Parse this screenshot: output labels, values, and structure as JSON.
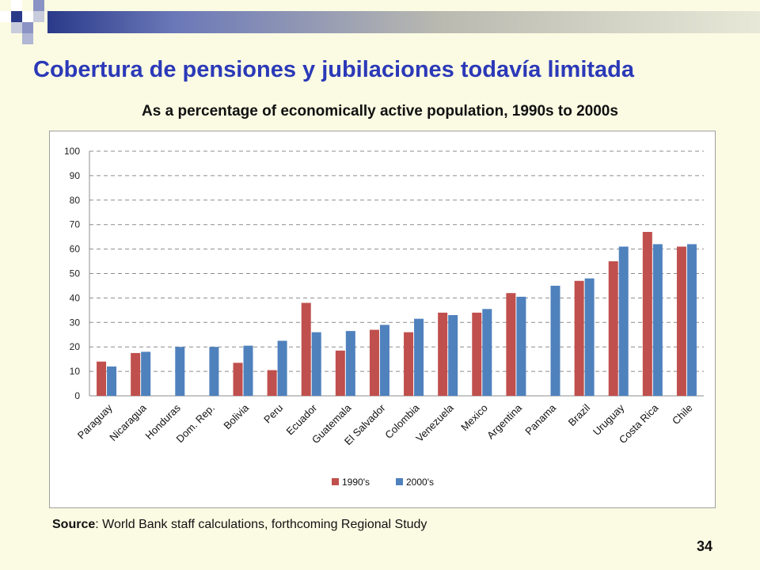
{
  "slide": {
    "title": "Cobertura de pensiones y jubilaciones todavía limitada",
    "subtitle": "As a percentage of economically active population, 1990s to 2000s",
    "source_label": "Source",
    "source_text": ": World Bank staff calculations, forthcoming Regional Study",
    "page_number": "34"
  },
  "colors": {
    "series_1990": "#c0504d",
    "series_2000": "#4f81bd",
    "title": "#2b39b8"
  },
  "chart_data": {
    "type": "bar",
    "categories": [
      "Paraguay",
      "Nicaragua",
      "Honduras",
      "Dom. Rep.",
      "Bolivia",
      "Peru",
      "Ecuador",
      "Guatemala",
      "El Salvador",
      "Colombia",
      "Venezuela",
      "Mexico",
      "Argentina",
      "Panama",
      "Brazil",
      "Uruguay",
      "Costa Rica",
      "Chile"
    ],
    "series": [
      {
        "name": "1990's",
        "values": [
          14,
          17.5,
          null,
          null,
          13.5,
          10.5,
          38,
          18.5,
          27,
          26,
          34,
          34,
          42,
          null,
          47,
          55,
          67,
          61
        ]
      },
      {
        "name": "2000's",
        "values": [
          12,
          18,
          20,
          20,
          20.5,
          22.5,
          26,
          26.5,
          29,
          31.5,
          33,
          35.5,
          40.5,
          45,
          48,
          61,
          62,
          62
        ]
      }
    ],
    "ylim": [
      0,
      100
    ],
    "yticks": [
      0,
      10,
      20,
      30,
      40,
      50,
      60,
      70,
      80,
      90,
      100
    ],
    "grid": true,
    "legend_position": "bottom"
  }
}
